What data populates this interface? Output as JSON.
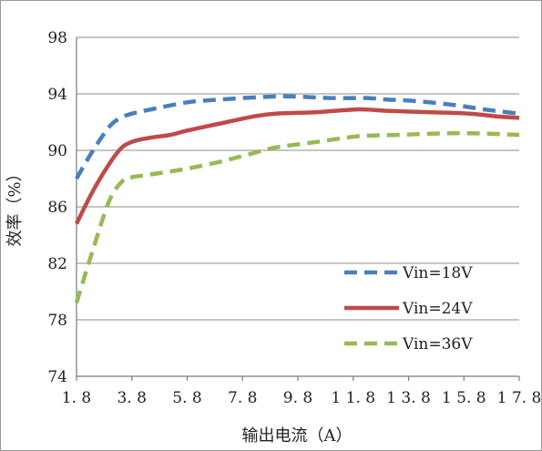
{
  "chart_data": {
    "type": "line",
    "title": "",
    "xlabel": "输出电流（A）",
    "ylabel": "效率（%）",
    "xlim": [
      1.8,
      17.8
    ],
    "ylim": [
      74,
      98
    ],
    "x_ticks": [
      "1.8",
      "3.8",
      "5.8",
      "7.8",
      "9.8",
      "11.8",
      "13.8",
      "15.8",
      "17.8"
    ],
    "y_ticks": [
      "74",
      "78",
      "82",
      "86",
      "90",
      "94",
      "98"
    ],
    "grid": "horizontal",
    "legend_position": "bottom-right",
    "series": [
      {
        "name": "Vin=18V",
        "color": "#4a7ebb",
        "dash": "dashed",
        "x": [
          1.8,
          2.4,
          3.0,
          3.4,
          3.8,
          4.5,
          5.8,
          7.0,
          8.8,
          9.8,
          11.0,
          12.3,
          13.0,
          14.0,
          15.5,
          16.5,
          17.8
        ],
        "y": [
          88.0,
          90.0,
          91.7,
          92.3,
          92.6,
          92.9,
          93.4,
          93.6,
          93.8,
          93.8,
          93.7,
          93.7,
          93.6,
          93.5,
          93.2,
          92.9,
          92.6
        ]
      },
      {
        "name": "Vin=24V",
        "color": "#be4b48",
        "dash": "solid",
        "x": [
          1.8,
          2.5,
          3.3,
          3.8,
          4.5,
          5.2,
          5.8,
          7.0,
          8.2,
          9.0,
          10.5,
          12.0,
          13.0,
          14.5,
          16.0,
          17.0,
          17.8
        ],
        "y": [
          84.8,
          87.5,
          89.9,
          90.6,
          90.9,
          91.1,
          91.4,
          91.9,
          92.4,
          92.6,
          92.7,
          92.9,
          92.8,
          92.7,
          92.6,
          92.4,
          92.3
        ]
      },
      {
        "name": "Vin=36V",
        "color": "#98b954",
        "dash": "dashed",
        "x": [
          1.8,
          2.4,
          3.0,
          3.5,
          3.8,
          4.5,
          5.8,
          7.0,
          8.0,
          9.0,
          10.5,
          12.0,
          13.5,
          15.0,
          16.3,
          17.8
        ],
        "y": [
          79.2,
          83.0,
          86.5,
          87.9,
          88.1,
          88.3,
          88.7,
          89.2,
          89.7,
          90.2,
          90.6,
          91.0,
          91.1,
          91.2,
          91.2,
          91.1
        ]
      }
    ]
  }
}
